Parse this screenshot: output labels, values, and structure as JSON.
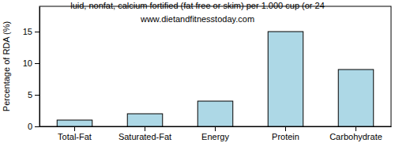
{
  "chart_data": {
    "type": "bar",
    "title": "luid, nonfat, calcium fortified (fat free or skim) per 1.000 cup (or 24",
    "subtitle": "www.dietandfitnesstoday.com",
    "y_label": "Percentage of RDA (%)",
    "categories": [
      "Total-Fat",
      "Saturated-Fat",
      "Energy",
      "Protein",
      "Carbohydrate"
    ],
    "values": [
      1,
      2,
      4,
      15,
      9
    ],
    "color": "#add8e6",
    "ylim": [
      0,
      19
    ],
    "yticks": [
      0,
      5,
      10,
      15
    ],
    "grid": false
  }
}
